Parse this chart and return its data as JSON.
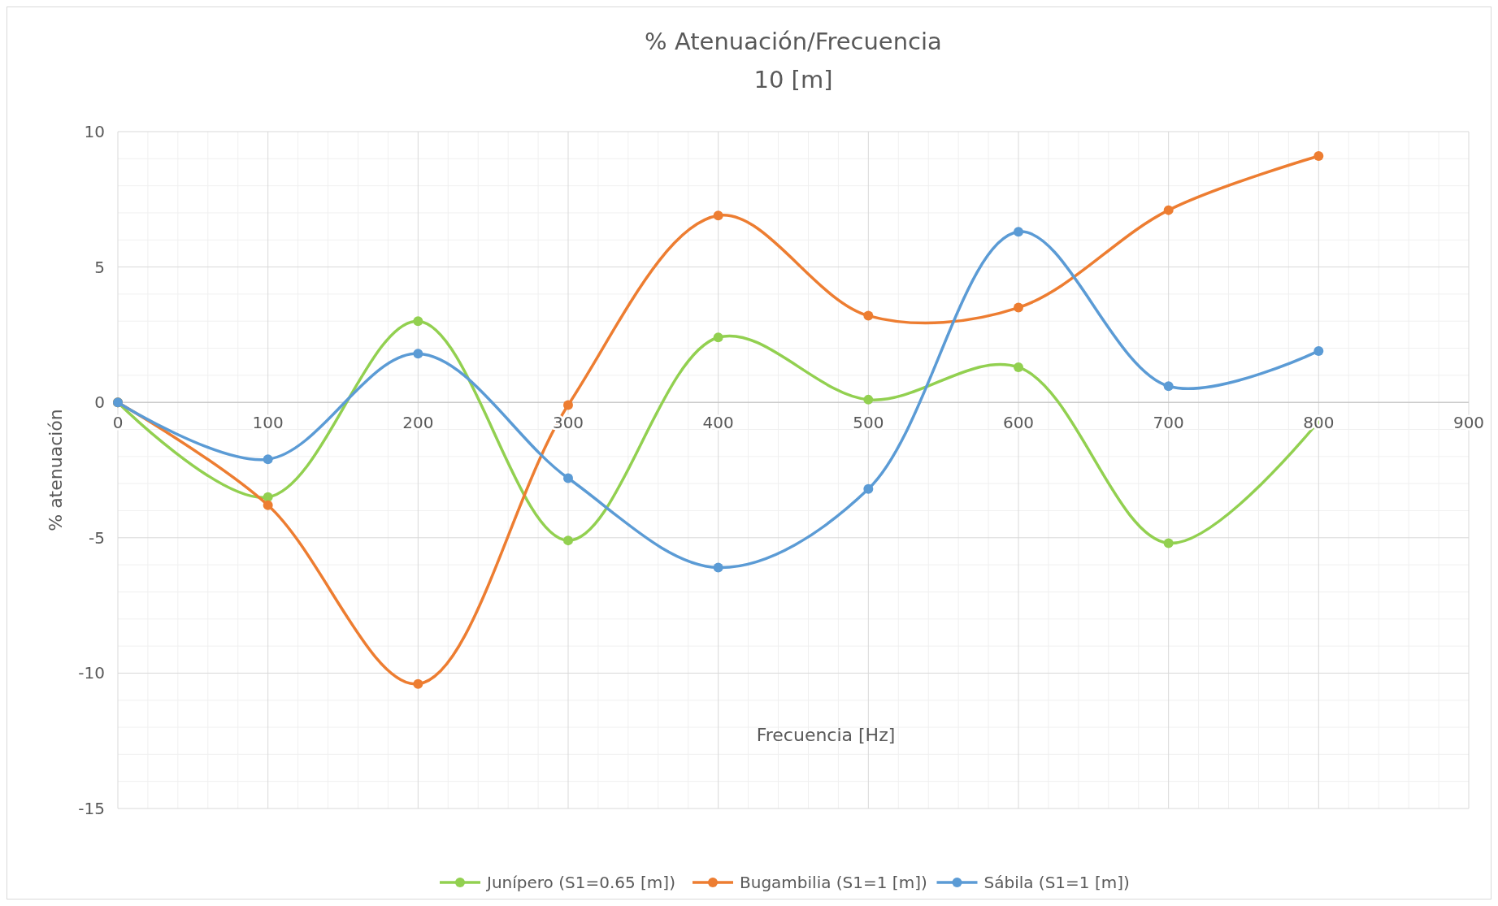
{
  "chart_data": {
    "type": "line",
    "title": "% Atenuación/Frecuencia",
    "subtitle": "10 [m]",
    "xlabel": "Frecuencia [Hz]",
    "ylabel": "% atenuación",
    "x": [
      0,
      100,
      200,
      300,
      400,
      500,
      600,
      700,
      800
    ],
    "series": [
      {
        "name": "Junípero (S1=0.65 [m])",
        "color": "#92d050",
        "values": [
          0,
          -3.5,
          3.0,
          -5.1,
          2.4,
          0.1,
          1.3,
          -5.2,
          -0.7
        ]
      },
      {
        "name": "Bugambilia (S1=1 [m])",
        "color": "#ed7d31",
        "values": [
          0,
          -3.8,
          -10.4,
          -0.1,
          6.9,
          3.2,
          3.5,
          7.1,
          9.1
        ]
      },
      {
        "name": "Sábila (S1=1 [m])",
        "color": "#5b9bd5",
        "values": [
          0,
          -2.1,
          1.8,
          -2.8,
          -6.1,
          -3.2,
          6.3,
          0.6,
          1.9
        ]
      }
    ],
    "xlim": [
      0,
      900
    ],
    "xticks": [
      0,
      100,
      200,
      300,
      400,
      500,
      600,
      700,
      800,
      900
    ],
    "ylim": [
      -15,
      10
    ],
    "yticks": [
      -15,
      -10,
      -5,
      0,
      5,
      10
    ],
    "grid": true,
    "legend": "bottom",
    "marker": "circle",
    "line_style": "solid"
  }
}
